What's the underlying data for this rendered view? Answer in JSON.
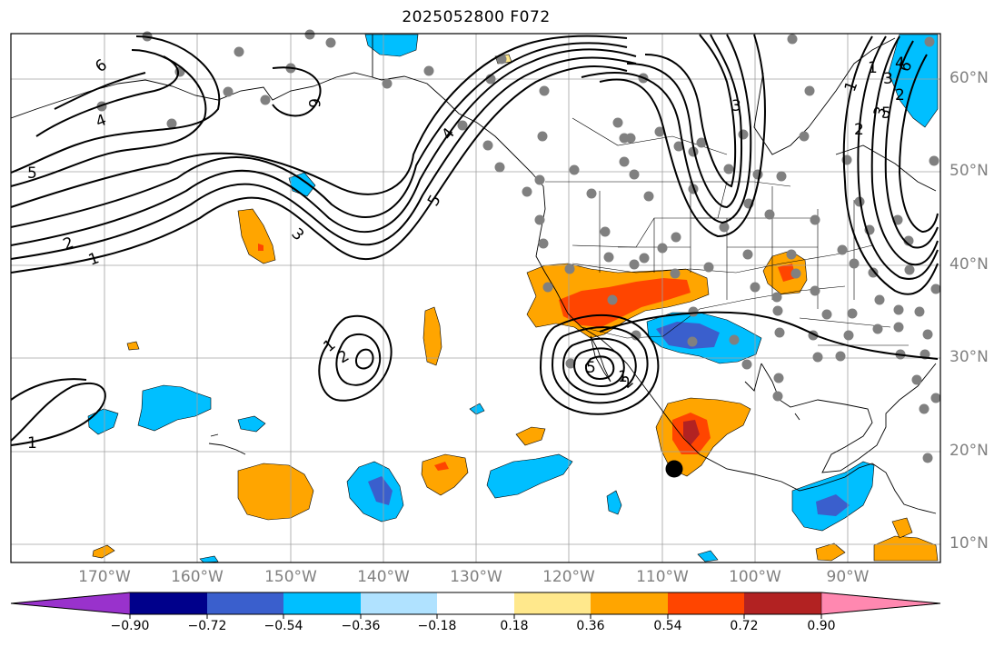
{
  "title": "2025052800 F072",
  "lon_labels": [
    "170°W",
    "160°W",
    "150°W",
    "140°W",
    "130°W",
    "120°W",
    "110°W",
    "100°W",
    "90°W"
  ],
  "lat_labels": [
    "60°N",
    "50°N",
    "40°N",
    "30°N",
    "20°N",
    "10°N"
  ],
  "colorbar": {
    "ticks": [
      "−0.90",
      "−0.72",
      "−0.54",
      "−0.36",
      "−0.18",
      "0.18",
      "0.36",
      "0.54",
      "0.72",
      "0.90"
    ],
    "colors": [
      "#9932cc",
      "#00008b",
      "#3a5fcd",
      "#00bfff",
      "#b0e2ff",
      "#ffffff",
      "#ffe88c",
      "#ffa500",
      "#ff4500",
      "#b22222",
      "#ff88b0"
    ]
  },
  "contour_labels": [
    "6",
    "4",
    "5",
    "2",
    "1",
    "3",
    "6",
    "4",
    "5",
    "1",
    "2",
    "3",
    "2",
    "1",
    "5",
    "1",
    "2",
    "3",
    "1",
    "2",
    "3",
    "4",
    "5",
    "6",
    "1"
  ],
  "colors": {
    "contour": "#000000",
    "station": "#808080",
    "grid": "#808080",
    "axis_label": "#808080"
  }
}
